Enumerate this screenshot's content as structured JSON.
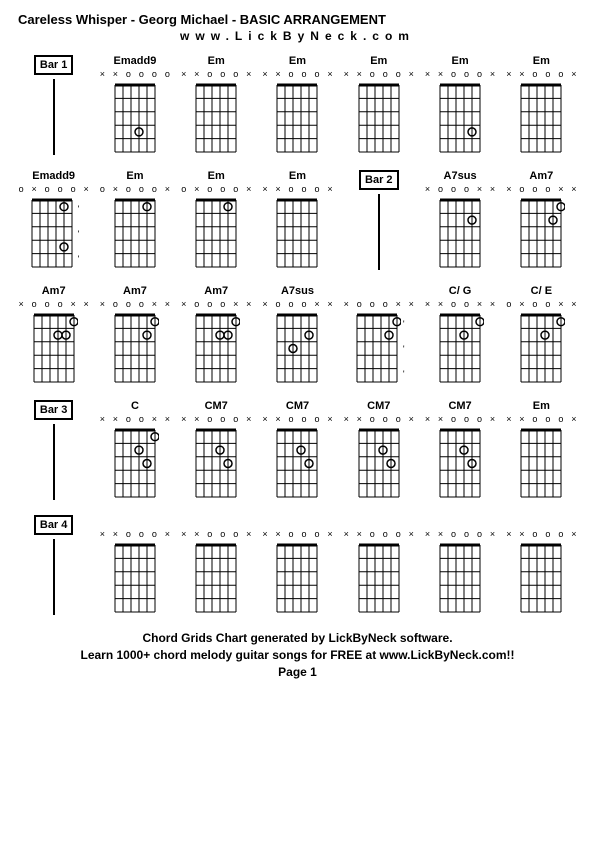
{
  "title": "Careless Whisper - Georg Michael - BASIC ARRANGEMENT",
  "subtitle": "www.LickByNeck.com",
  "footer_line1": "Chord Grids Chart generated by LickByNeck software.",
  "footer_line2": "Learn 1000+ chord melody guitar songs for FREE at www.LickByNeck.com!!",
  "page_label": "Page 1",
  "chord_style": {
    "width": 48,
    "height": 75,
    "strings": 6,
    "frets": 5,
    "grid_color": "#000",
    "dot_color": "#000",
    "open_color": "#000",
    "font_size": 11
  },
  "bar_labels": {
    "1": "Bar 1",
    "2": "Bar 2",
    "3": "Bar 3",
    "4": "Bar 4"
  },
  "rows": [
    [
      {
        "type": "bar",
        "bar": "1"
      },
      {
        "type": "chord",
        "name": "Emadd9",
        "markers": [
          "x",
          "x",
          "o",
          "o",
          "o",
          "o"
        ],
        "dots": [
          [
            4,
            3
          ]
        ]
      },
      {
        "type": "chord",
        "name": "Em",
        "markers": [
          "x",
          "x",
          "o",
          "o",
          "o",
          "x"
        ],
        "dots": []
      },
      {
        "type": "chord",
        "name": "Em",
        "markers": [
          "x",
          "x",
          "o",
          "o",
          "o",
          "x"
        ],
        "dots": []
      },
      {
        "type": "chord",
        "name": "Em",
        "markers": [
          "x",
          "x",
          "o",
          "o",
          "o",
          "x"
        ],
        "dots": []
      },
      {
        "type": "chord",
        "name": "Em",
        "markers": [
          "x",
          "x",
          "o",
          "o",
          "o",
          "x"
        ],
        "dots": [
          [
            4,
            2
          ]
        ]
      },
      {
        "type": "chord",
        "name": "Em",
        "markers": [
          "x",
          "x",
          "o",
          "o",
          "o",
          "x"
        ],
        "dots": []
      }
    ],
    [
      {
        "type": "chord",
        "name": "Emadd9",
        "markers": [
          "o",
          "x",
          "o",
          "o",
          "o",
          "x"
        ],
        "dots": [
          [
            1,
            2
          ],
          [
            4,
            2
          ]
        ],
        "ticks": true
      },
      {
        "type": "chord",
        "name": "Em",
        "markers": [
          "o",
          "x",
          "o",
          "o",
          "o",
          "x"
        ],
        "dots": [
          [
            1,
            2
          ]
        ]
      },
      {
        "type": "chord",
        "name": "Em",
        "markers": [
          "o",
          "x",
          "o",
          "o",
          "o",
          "x"
        ],
        "dots": [
          [
            1,
            2
          ]
        ]
      },
      {
        "type": "chord",
        "name": "Em",
        "markers": [
          "x",
          "x",
          "o",
          "o",
          "o",
          "x"
        ],
        "dots": []
      },
      {
        "type": "bar",
        "bar": "2"
      },
      {
        "type": "chord",
        "name": "A7sus",
        "markers": [
          "x",
          "o",
          "o",
          "o",
          "x",
          "x"
        ],
        "dots": [
          [
            2,
            2
          ]
        ]
      },
      {
        "type": "chord",
        "name": "Am7",
        "markers": [
          "x",
          "o",
          "o",
          "o",
          "x",
          "x"
        ],
        "dots": [
          [
            1,
            1
          ],
          [
            2,
            2
          ]
        ]
      }
    ],
    [
      {
        "type": "chord",
        "name": "Am7",
        "markers": [
          "x",
          "o",
          "o",
          "o",
          "x",
          "x"
        ],
        "dots": [
          [
            1,
            1
          ],
          [
            2,
            2
          ],
          [
            2,
            3
          ]
        ]
      },
      {
        "type": "chord",
        "name": "Am7",
        "markers": [
          "x",
          "o",
          "o",
          "o",
          "x",
          "x"
        ],
        "dots": [
          [
            1,
            1
          ],
          [
            2,
            2
          ]
        ]
      },
      {
        "type": "chord",
        "name": "Am7",
        "markers": [
          "x",
          "o",
          "o",
          "o",
          "x",
          "x"
        ],
        "dots": [
          [
            1,
            1
          ],
          [
            2,
            2
          ],
          [
            2,
            3
          ]
        ]
      },
      {
        "type": "chord",
        "name": "A7sus",
        "markers": [
          "x",
          "o",
          "o",
          "o",
          "x",
          "x"
        ],
        "dots": [
          [
            2,
            2
          ],
          [
            3,
            4
          ]
        ]
      },
      {
        "type": "chord",
        "name": "",
        "markers": [
          "x",
          "o",
          "o",
          "o",
          "x",
          "x"
        ],
        "dots": [
          [
            1,
            1
          ],
          [
            2,
            2
          ]
        ],
        "ticks": true
      },
      {
        "type": "chord",
        "name": "C/ G",
        "markers": [
          "x",
          "x",
          "o",
          "o",
          "x",
          "x"
        ],
        "dots": [
          [
            1,
            1
          ],
          [
            2,
            3
          ]
        ]
      },
      {
        "type": "chord",
        "name": "C/ E",
        "markers": [
          "o",
          "x",
          "o",
          "o",
          "x",
          "x"
        ],
        "dots": [
          [
            1,
            1
          ],
          [
            2,
            3
          ]
        ]
      }
    ],
    [
      {
        "type": "bar",
        "bar": "3"
      },
      {
        "type": "chord",
        "name": "C",
        "markers": [
          "x",
          "x",
          "o",
          "o",
          "x",
          "x"
        ],
        "dots": [
          [
            1,
            1
          ],
          [
            2,
            3
          ],
          [
            3,
            2
          ]
        ]
      },
      {
        "type": "chord",
        "name": "CM7",
        "markers": [
          "x",
          "x",
          "o",
          "o",
          "o",
          "x"
        ],
        "dots": [
          [
            2,
            3
          ],
          [
            3,
            2
          ]
        ]
      },
      {
        "type": "chord",
        "name": "CM7",
        "markers": [
          "x",
          "x",
          "o",
          "o",
          "o",
          "x"
        ],
        "dots": [
          [
            2,
            3
          ],
          [
            3,
            2
          ]
        ]
      },
      {
        "type": "chord",
        "name": "CM7",
        "markers": [
          "x",
          "x",
          "o",
          "o",
          "o",
          "x"
        ],
        "dots": [
          [
            2,
            3
          ],
          [
            3,
            2
          ]
        ]
      },
      {
        "type": "chord",
        "name": "CM7",
        "markers": [
          "x",
          "x",
          "o",
          "o",
          "o",
          "x"
        ],
        "dots": [
          [
            2,
            3
          ],
          [
            3,
            2
          ]
        ]
      },
      {
        "type": "chord",
        "name": "Em",
        "markers": [
          "x",
          "x",
          "o",
          "o",
          "o",
          "x"
        ],
        "dots": []
      }
    ],
    [
      {
        "type": "bar",
        "bar": "4"
      },
      {
        "type": "chord",
        "name": "",
        "markers": [
          "x",
          "x",
          "o",
          "o",
          "o",
          "x"
        ],
        "dots": []
      },
      {
        "type": "chord",
        "name": "",
        "markers": [
          "x",
          "x",
          "o",
          "o",
          "o",
          "x"
        ],
        "dots": []
      },
      {
        "type": "chord",
        "name": "",
        "markers": [
          "x",
          "x",
          "o",
          "o",
          "o",
          "x"
        ],
        "dots": []
      },
      {
        "type": "chord",
        "name": "",
        "markers": [
          "x",
          "x",
          "o",
          "o",
          "o",
          "x"
        ],
        "dots": []
      },
      {
        "type": "chord",
        "name": "",
        "markers": [
          "x",
          "x",
          "o",
          "o",
          "o",
          "x"
        ],
        "dots": []
      },
      {
        "type": "chord",
        "name": "",
        "markers": [
          "x",
          "x",
          "o",
          "o",
          "o",
          "x"
        ],
        "dots": []
      }
    ]
  ]
}
